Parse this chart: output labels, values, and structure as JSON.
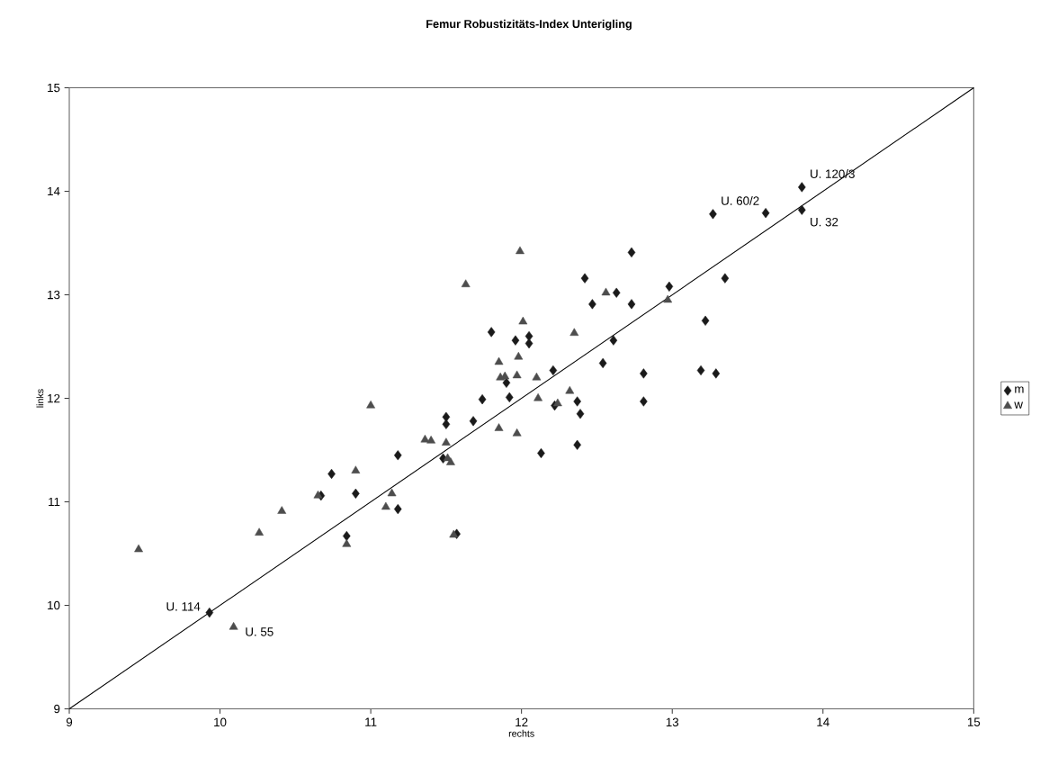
{
  "chart_data": {
    "type": "scatter",
    "title": "Femur Robustizitäts-Index Unterigling",
    "xlabel": "rechts",
    "ylabel": "links",
    "xlim": [
      9,
      15
    ],
    "ylim": [
      9,
      15
    ],
    "xticks": [
      9,
      10,
      11,
      12,
      13,
      14,
      15
    ],
    "yticks": [
      9,
      10,
      11,
      12,
      13,
      14,
      15
    ],
    "grid": false,
    "legend": "right",
    "series": [
      {
        "name": "m",
        "color": "#1a1a1a",
        "marker": "diamond",
        "x": [
          9.93,
          10.67,
          10.74,
          10.84,
          10.9,
          11.18,
          11.18,
          11.48,
          11.5,
          11.5,
          11.57,
          11.68,
          11.74,
          11.8,
          11.9,
          11.92,
          11.96,
          12.05,
          12.05,
          12.13,
          12.21,
          12.22,
          12.37,
          12.37,
          12.39,
          12.42,
          12.47,
          12.54,
          12.61,
          12.63,
          12.73,
          12.73,
          12.81,
          12.81,
          12.98,
          13.19,
          13.22,
          13.27,
          13.29,
          13.35,
          13.62,
          13.86,
          13.86
        ],
        "values": [
          9.93,
          11.06,
          11.27,
          10.67,
          11.08,
          11.45,
          10.93,
          11.42,
          11.82,
          11.75,
          10.69,
          11.78,
          11.99,
          12.64,
          12.15,
          12.01,
          12.56,
          12.6,
          12.53,
          11.47,
          12.27,
          11.93,
          11.97,
          11.55,
          11.85,
          13.16,
          12.91,
          12.34,
          12.56,
          13.02,
          13.41,
          12.91,
          11.97,
          12.24,
          13.08,
          12.27,
          12.75,
          13.78,
          12.24,
          13.16,
          13.79,
          14.04,
          13.82
        ]
      },
      {
        "name": "w",
        "color": "#4d4d4d",
        "marker": "triangle",
        "x": [
          9.46,
          10.09,
          10.26,
          10.41,
          10.65,
          10.84,
          10.9,
          11.0,
          11.1,
          11.14,
          11.36,
          11.4,
          11.5,
          11.51,
          11.53,
          11.55,
          11.63,
          11.85,
          11.85,
          11.86,
          11.89,
          11.97,
          11.97,
          11.98,
          11.99,
          12.01,
          12.1,
          12.11,
          12.24,
          12.32,
          12.35,
          12.56,
          12.97
        ],
        "values": [
          10.54,
          9.79,
          10.7,
          10.91,
          11.06,
          10.59,
          11.3,
          11.93,
          10.95,
          11.08,
          11.6,
          11.59,
          11.57,
          11.42,
          11.38,
          10.68,
          13.1,
          11.71,
          12.35,
          12.2,
          12.21,
          12.22,
          11.66,
          12.4,
          13.42,
          12.74,
          12.2,
          12.0,
          11.95,
          12.07,
          12.63,
          13.02,
          12.95
        ]
      },
      {
        "type": "line",
        "color": "#000000",
        "marker": "none",
        "x": [
          9,
          15
        ],
        "values": [
          9,
          15
        ]
      }
    ],
    "annotations": [
      {
        "text": "U. 114",
        "x": 9.93,
        "y": 9.93
      },
      {
        "text": "U. 55",
        "x": 10.09,
        "y": 9.79
      },
      {
        "text": "U. 120/3",
        "x": 13.86,
        "y": 14.04
      },
      {
        "text": "U. 60/2",
        "x": 13.27,
        "y": 13.78
      },
      {
        "text": "U. 32",
        "x": 13.86,
        "y": 13.82
      }
    ]
  }
}
